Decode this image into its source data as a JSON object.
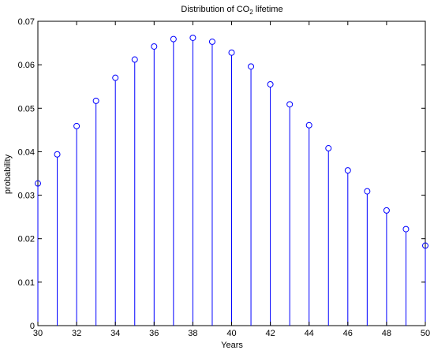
{
  "chart_data": {
    "type": "stem",
    "title": {
      "prefix": "Distribution of CO",
      "subscript": "2",
      "suffix": " lifetime"
    },
    "xlabel": "Years",
    "ylabel": "probability",
    "xlim": [
      30,
      50
    ],
    "ylim": [
      0,
      0.07
    ],
    "xticks": [
      "30",
      "32",
      "34",
      "36",
      "38",
      "40",
      "42",
      "44",
      "46",
      "48",
      "50"
    ],
    "yticks": [
      "0",
      "0.01",
      "0.02",
      "0.03",
      "0.04",
      "0.05",
      "0.06",
      "0.07"
    ],
    "grid": false,
    "series": [
      {
        "color": "#0000ff",
        "x": [
          30,
          31,
          32,
          33,
          34,
          35,
          36,
          37,
          38,
          39,
          40,
          41,
          42,
          43,
          44,
          45,
          46,
          47,
          48,
          49,
          50
        ],
        "y": [
          0.0327,
          0.0394,
          0.0459,
          0.0517,
          0.057,
          0.0612,
          0.0642,
          0.0659,
          0.0662,
          0.0653,
          0.0628,
          0.0596,
          0.0555,
          0.0509,
          0.0461,
          0.0408,
          0.0357,
          0.0309,
          0.0265,
          0.0222,
          0.0184
        ]
      }
    ]
  }
}
